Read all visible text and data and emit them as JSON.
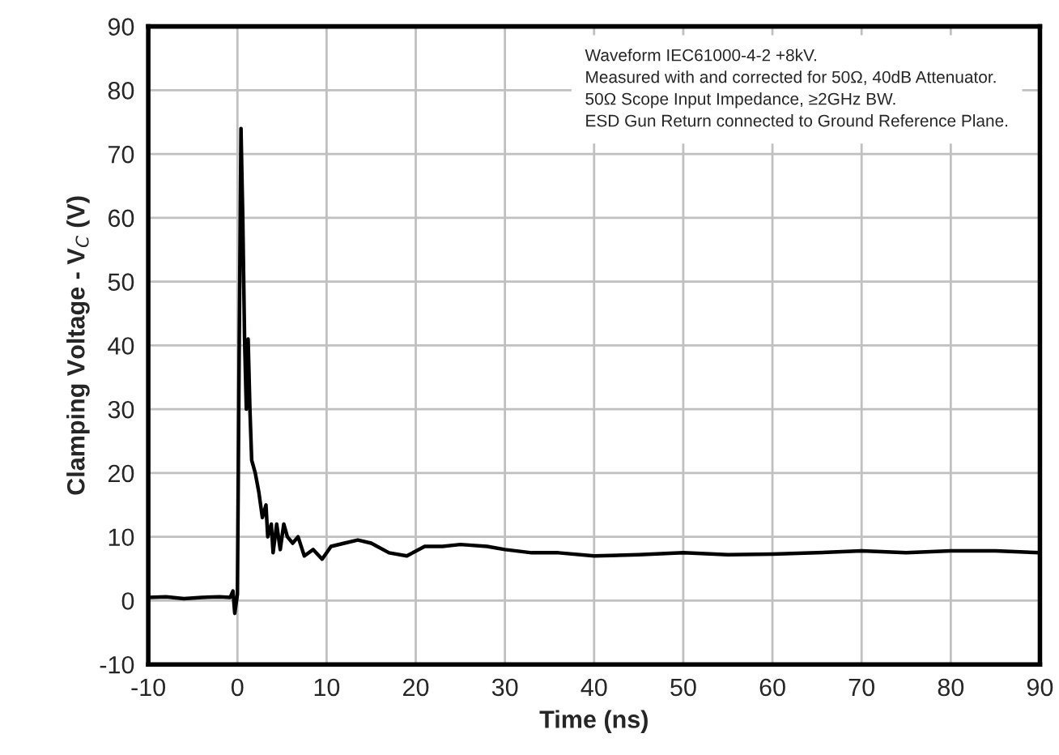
{
  "chart_data": {
    "type": "line",
    "xlabel": "Time (ns)",
    "ylabel": "Clamping Voltage - V$_{C}$ (V)",
    "xlim": [
      -10,
      90
    ],
    "xticks": [
      -10,
      0,
      10,
      20,
      30,
      40,
      50,
      60,
      70,
      80,
      90
    ],
    "ylim": [
      -10,
      90
    ],
    "yticks": [
      -10,
      0,
      10,
      20,
      30,
      40,
      50,
      60,
      70,
      80,
      90
    ],
    "grid": true,
    "marker": "none",
    "line_style": "solid",
    "annotations": [
      "Waveform IEC61000-4-2 +8kV.\nMeasured with and corrected for 50Ω, 40dB Attenuator.\n50Ω Scope Input Impedance, ≥2GHz BW.\nESD Gun Return connected to Ground Reference Plane."
    ],
    "series": [
      {
        "color": "#000000",
        "x": [
          -10,
          -8,
          -6,
          -4,
          -2,
          -0.8,
          -0.5,
          -0.3,
          0,
          0.2,
          0.4,
          0.6,
          0.8,
          1.0,
          1.2,
          1.4,
          1.6,
          2,
          2.4,
          2.8,
          3.2,
          3.4,
          3.8,
          4.0,
          4.4,
          4.8,
          5.2,
          5.6,
          6.2,
          6.8,
          7.5,
          8.5,
          9.5,
          10.5,
          12,
          13.5,
          15,
          17,
          19,
          21,
          23,
          25,
          28,
          30,
          33,
          36,
          40,
          45,
          50,
          55,
          60,
          65,
          70,
          75,
          80,
          85,
          90
        ],
        "values": [
          0.5,
          0.6,
          0.3,
          0.5,
          0.6,
          0.5,
          1.5,
          -2,
          1,
          40,
          74,
          60,
          41,
          30,
          41,
          30,
          22,
          20,
          17,
          13,
          15,
          10,
          12,
          7.5,
          12,
          8,
          12,
          10,
          9,
          10,
          7,
          8,
          6.5,
          8.5,
          9,
          9.5,
          9,
          7.5,
          7,
          8.5,
          8.5,
          8.8,
          8.5,
          8,
          7.5,
          7.5,
          7,
          7.2,
          7.5,
          7.2,
          7.3,
          7.5,
          7.8,
          7.5,
          7.8,
          7.8,
          7.5
        ]
      }
    ]
  }
}
